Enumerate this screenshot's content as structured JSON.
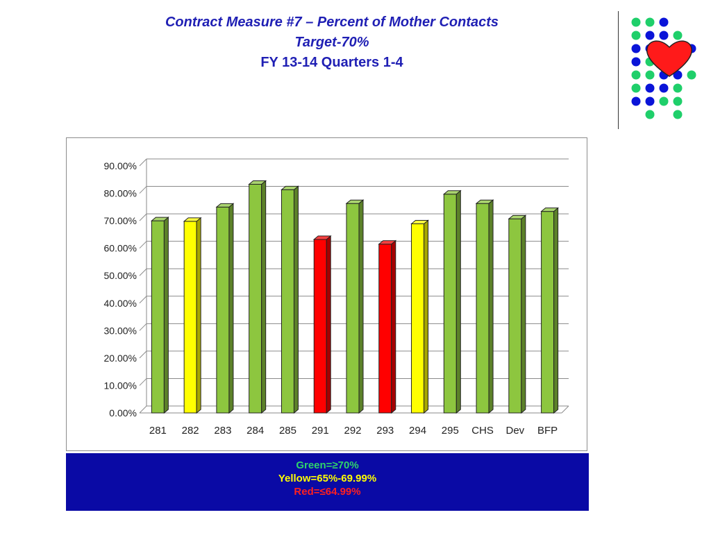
{
  "slide": {
    "title_line1": "Contract Measure #7 – Percent of Mother Contacts",
    "title_line2": "Target-70%",
    "title_line3": "FY 13-14 Quarters 1-4"
  },
  "legend": {
    "green": "Green=≥70%",
    "yellow": "Yellow=65%-69.99%",
    "red": "Red=≤64.99%"
  },
  "colors": {
    "green": "#8dc63f",
    "yellow": "#ffff00",
    "red": "#ff0000",
    "legend_bg": "#0a0aa5",
    "title": "#1f1fb4"
  },
  "logo": {
    "icon": "heart-icon",
    "dot_colors": [
      "#1fcf6a",
      "#0a14d8"
    ]
  },
  "chart_data": {
    "type": "bar",
    "categories": [
      "281",
      "282",
      "283",
      "284",
      "285",
      "291",
      "292",
      "293",
      "294",
      "295",
      "CHS",
      "Dev",
      "BFP"
    ],
    "values": [
      70.0,
      69.8,
      75.0,
      83.3,
      81.3,
      63.2,
      76.3,
      61.5,
      68.9,
      79.7,
      76.3,
      70.7,
      73.4
    ],
    "bar_colors": [
      "green",
      "yellow",
      "green",
      "green",
      "green",
      "red",
      "green",
      "red",
      "yellow",
      "green",
      "green",
      "green",
      "green"
    ],
    "ylim": [
      0,
      90
    ],
    "yticks": [
      "0.00%",
      "10.00%",
      "20.00%",
      "30.00%",
      "40.00%",
      "50.00%",
      "60.00%",
      "70.00%",
      "80.00%",
      "90.00%"
    ],
    "grid": true,
    "title": "",
    "xlabel": "",
    "ylabel": ""
  }
}
